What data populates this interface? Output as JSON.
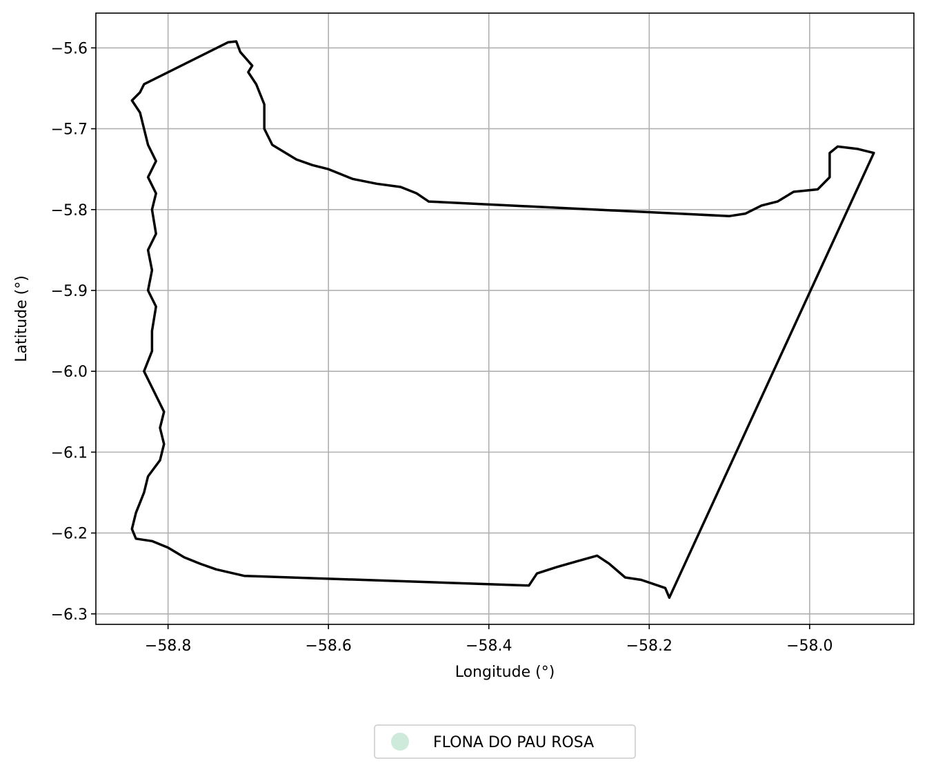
{
  "chart_data": {
    "type": "map-outline",
    "title": "",
    "xlabel": "Longitude (°)",
    "ylabel": "Latitude (°)",
    "xlim": [
      -58.89,
      -57.87
    ],
    "ylim": [
      -6.313,
      -5.557
    ],
    "xticks": [
      -58.8,
      -58.6,
      -58.4,
      -58.2,
      -58.0
    ],
    "yticks": [
      -5.6,
      -5.7,
      -5.8,
      -5.9,
      -6.0,
      -6.1,
      -6.2,
      -6.3
    ],
    "xtick_labels": [
      "−58.8",
      "−58.6",
      "−58.4",
      "−58.2",
      "−58.0"
    ],
    "ytick_labels": [
      "−5.6",
      "−5.7",
      "−5.8",
      "−5.9",
      "−6.0",
      "−6.1",
      "−6.2",
      "−6.3"
    ],
    "grid": true,
    "legend_position": "bottom-center",
    "series": [
      {
        "name": "FLONA DO PAU ROSA",
        "fill_color": "#cdeadb",
        "stroke_color": "#000000",
        "boundary": [
          [
            -58.83,
            -5.645
          ],
          [
            -58.725,
            -5.593
          ],
          [
            -58.715,
            -5.592
          ],
          [
            -58.71,
            -5.605
          ],
          [
            -58.695,
            -5.622
          ],
          [
            -58.7,
            -5.63
          ],
          [
            -58.69,
            -5.645
          ],
          [
            -58.68,
            -5.67
          ],
          [
            -58.68,
            -5.7
          ],
          [
            -58.67,
            -5.72
          ],
          [
            -58.64,
            -5.738
          ],
          [
            -58.62,
            -5.745
          ],
          [
            -58.6,
            -5.75
          ],
          [
            -58.57,
            -5.762
          ],
          [
            -58.54,
            -5.768
          ],
          [
            -58.51,
            -5.772
          ],
          [
            -58.49,
            -5.78
          ],
          [
            -58.475,
            -5.79
          ],
          [
            -58.1,
            -5.808
          ],
          [
            -58.08,
            -5.805
          ],
          [
            -58.06,
            -5.795
          ],
          [
            -58.04,
            -5.79
          ],
          [
            -58.02,
            -5.778
          ],
          [
            -57.99,
            -5.775
          ],
          [
            -57.975,
            -5.76
          ],
          [
            -57.975,
            -5.73
          ],
          [
            -57.965,
            -5.722
          ],
          [
            -57.94,
            -5.725
          ],
          [
            -57.92,
            -5.73
          ],
          [
            -58.175,
            -6.28
          ],
          [
            -58.18,
            -6.268
          ],
          [
            -58.21,
            -6.258
          ],
          [
            -58.23,
            -6.255
          ],
          [
            -58.25,
            -6.238
          ],
          [
            -58.265,
            -6.228
          ],
          [
            -58.29,
            -6.235
          ],
          [
            -58.315,
            -6.242
          ],
          [
            -58.34,
            -6.25
          ],
          [
            -58.35,
            -6.265
          ],
          [
            -58.705,
            -6.253
          ],
          [
            -58.74,
            -6.245
          ],
          [
            -58.76,
            -6.238
          ],
          [
            -58.78,
            -6.23
          ],
          [
            -58.8,
            -6.218
          ],
          [
            -58.82,
            -6.21
          ],
          [
            -58.84,
            -6.207
          ],
          [
            -58.845,
            -6.195
          ],
          [
            -58.84,
            -6.175
          ],
          [
            -58.83,
            -6.15
          ],
          [
            -58.825,
            -6.13
          ],
          [
            -58.81,
            -6.11
          ],
          [
            -58.805,
            -6.09
          ],
          [
            -58.81,
            -6.07
          ],
          [
            -58.805,
            -6.05
          ],
          [
            -58.82,
            -6.02
          ],
          [
            -58.83,
            -6.0
          ],
          [
            -58.82,
            -5.975
          ],
          [
            -58.82,
            -5.95
          ],
          [
            -58.815,
            -5.92
          ],
          [
            -58.825,
            -5.9
          ],
          [
            -58.82,
            -5.875
          ],
          [
            -58.825,
            -5.85
          ],
          [
            -58.815,
            -5.83
          ],
          [
            -58.82,
            -5.8
          ],
          [
            -58.815,
            -5.78
          ],
          [
            -58.825,
            -5.76
          ],
          [
            -58.815,
            -5.74
          ],
          [
            -58.825,
            -5.72
          ],
          [
            -58.83,
            -5.7
          ],
          [
            -58.835,
            -5.68
          ],
          [
            -58.845,
            -5.665
          ],
          [
            -58.835,
            -5.655
          ],
          [
            -58.83,
            -5.645
          ]
        ]
      }
    ]
  }
}
